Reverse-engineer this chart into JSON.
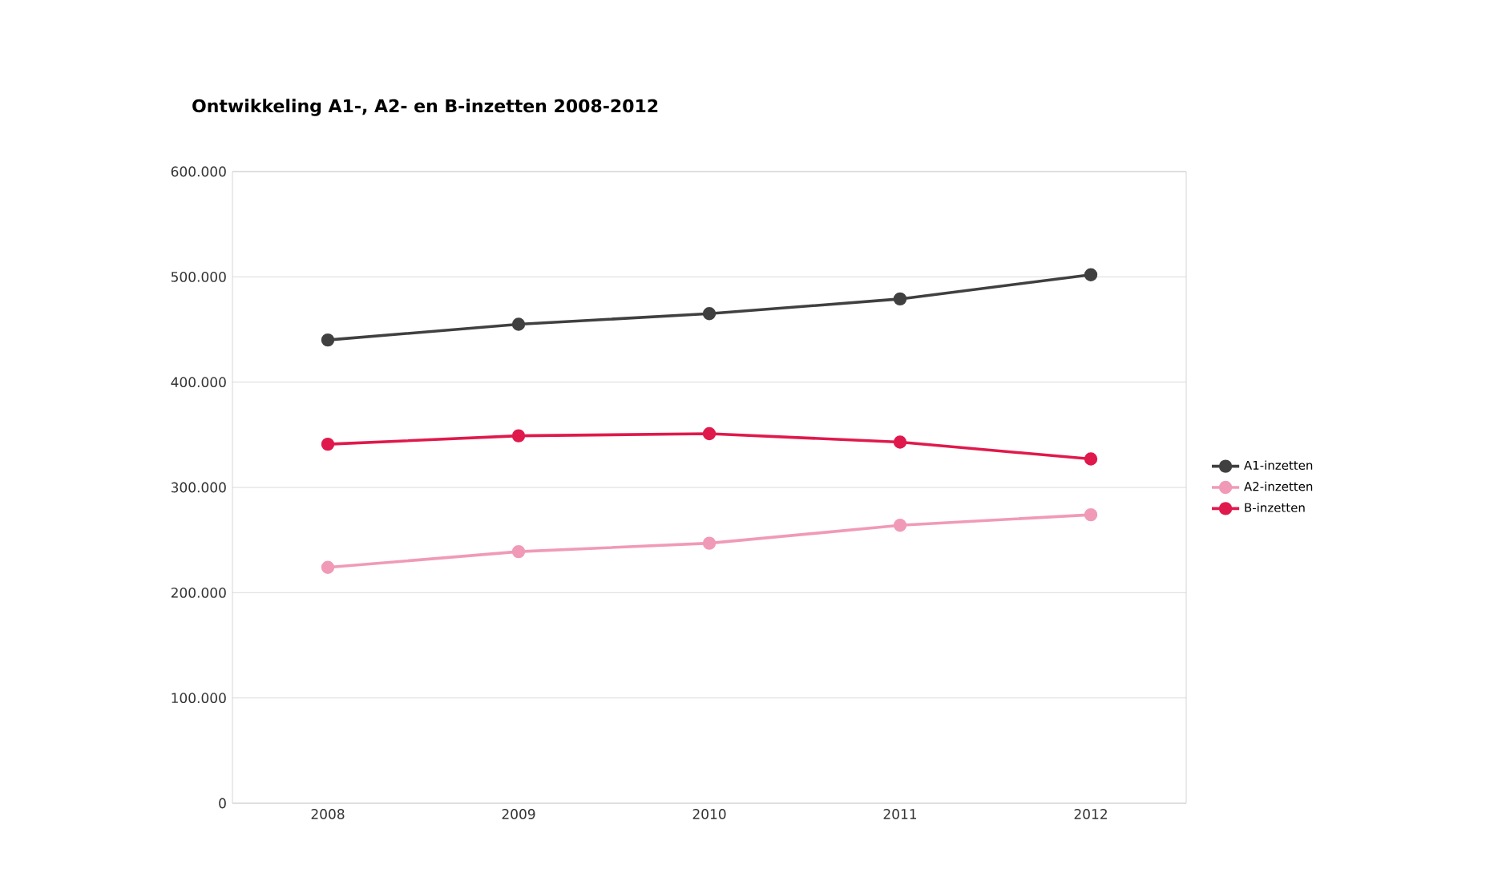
{
  "chart_data": {
    "type": "line",
    "title": "Ontwikkeling A1-, A2- en B-inzetten 2008-2012",
    "categories": [
      "2008",
      "2009",
      "2010",
      "2011",
      "2012"
    ],
    "series": [
      {
        "name": "A1-inzetten",
        "color": "#404040",
        "values": [
          440000,
          455000,
          465000,
          479000,
          502000
        ]
      },
      {
        "name": "A2-inzetten",
        "color": "#f09ab8",
        "values": [
          224000,
          239000,
          247000,
          264000,
          274000
        ]
      },
      {
        "name": "B-inzetten",
        "color": "#e0194c",
        "values": [
          341000,
          349000,
          351000,
          343000,
          327000
        ]
      }
    ],
    "ylim": [
      0,
      600000
    ],
    "yticks": [
      {
        "value": 0,
        "label": "0"
      },
      {
        "value": 100000,
        "label": "100.000"
      },
      {
        "value": 200000,
        "label": "200.000"
      },
      {
        "value": 300000,
        "label": "300.000"
      },
      {
        "value": 400000,
        "label": "400.000"
      },
      {
        "value": 500000,
        "label": "500.000"
      },
      {
        "value": 600000,
        "label": "600.000"
      }
    ],
    "grid": "y",
    "legend": "right",
    "marker": "circle",
    "line_style": "solid"
  }
}
